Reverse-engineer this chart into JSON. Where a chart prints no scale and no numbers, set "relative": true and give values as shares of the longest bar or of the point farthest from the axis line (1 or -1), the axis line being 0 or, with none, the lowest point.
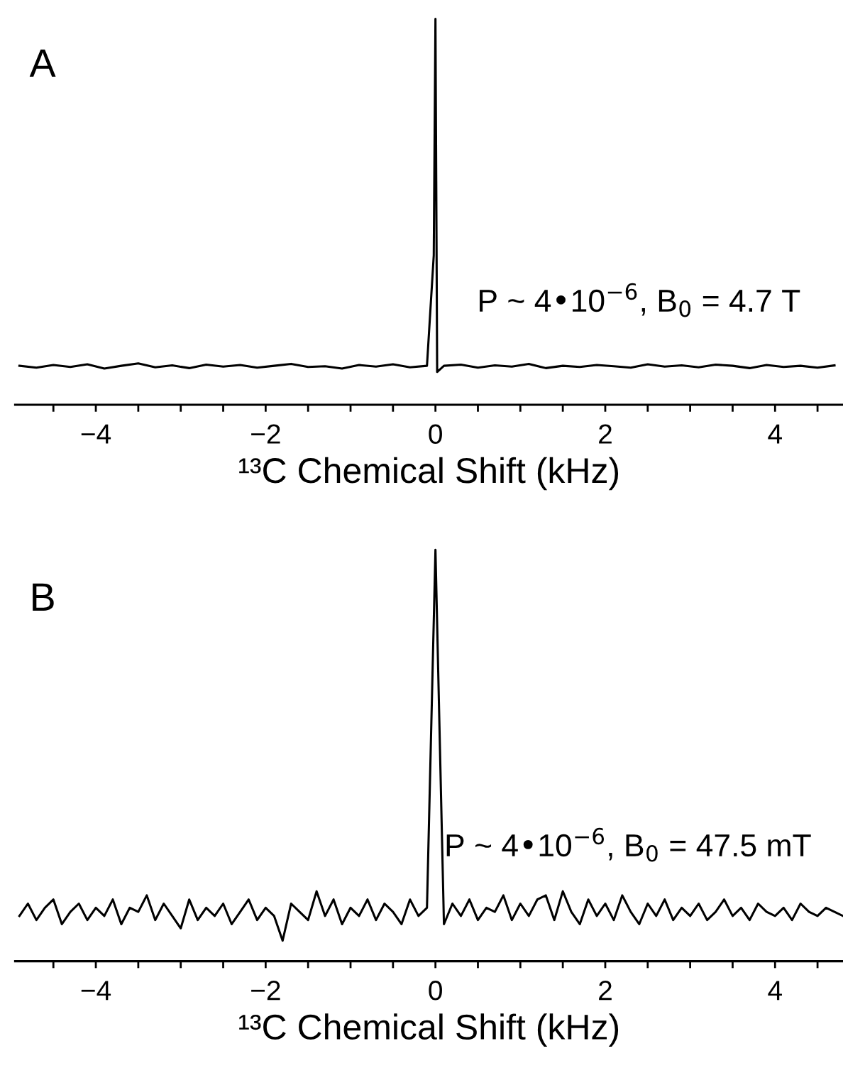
{
  "chart_data": [
    {
      "type": "line",
      "title": "A",
      "xlabel": "¹³C Chemical Shift (kHz)",
      "relative": true,
      "tick_labels": "x",
      "annotations": [
        "P ~ 4•10$^{−6}$, B$_{0}$ = 4.7 T"
      ],
      "xlim": [
        -4.95,
        4.8
      ],
      "xticks": [
        {
          "value": -4.5,
          "label": null
        },
        -4,
        {
          "value": -3.5,
          "label": null
        },
        {
          "value": -3,
          "label": null
        },
        {
          "value": -2.5,
          "label": null
        },
        -2,
        {
          "value": -1.5,
          "label": null
        },
        {
          "value": -1,
          "label": null
        },
        {
          "value": -0.5,
          "label": null
        },
        0,
        {
          "value": 0.5,
          "label": null
        },
        {
          "value": 1,
          "label": null
        },
        {
          "value": 1.5,
          "label": null
        },
        2,
        {
          "value": 2.5,
          "label": null
        },
        {
          "value": 3,
          "label": null
        },
        {
          "value": 3.5,
          "label": null
        },
        4,
        {
          "value": 4.5,
          "label": null
        }
      ],
      "series": [
        {
          "color": "#000000",
          "x": [
            -4.9,
            -4.7,
            -4.5,
            -4.3,
            -4.1,
            -3.9,
            -3.7,
            -3.5,
            -3.3,
            -3.1,
            -2.9,
            -2.7,
            -2.5,
            -2.3,
            -2.1,
            -1.9,
            -1.7,
            -1.5,
            -1.3,
            -1.1,
            -0.9,
            -0.7,
            -0.5,
            -0.3,
            -0.1,
            -0.02,
            0,
            0.02,
            0.1,
            0.3,
            0.5,
            0.7,
            0.9,
            1.1,
            1.3,
            1.5,
            1.7,
            1.9,
            2.1,
            2.3,
            2.5,
            2.7,
            2.9,
            3.1,
            3.3,
            3.5,
            3.7,
            3.9,
            4.1,
            4.3,
            4.5,
            4.7
          ],
          "values": [
            0.101,
            0.096,
            0.103,
            0.098,
            0.105,
            0.094,
            0.101,
            0.107,
            0.097,
            0.102,
            0.095,
            0.104,
            0.099,
            0.103,
            0.096,
            0.101,
            0.106,
            0.098,
            0.1,
            0.094,
            0.103,
            0.099,
            0.105,
            0.097,
            0.101,
            0.387,
            1,
            0.085,
            0.101,
            0.104,
            0.096,
            0.102,
            0.099,
            0.106,
            0.095,
            0.101,
            0.098,
            0.103,
            0.1,
            0.096,
            0.105,
            0.099,
            0.102,
            0.097,
            0.104,
            0.101,
            0.095,
            0.103,
            0.098,
            0.101,
            0.096,
            0.102
          ]
        }
      ]
    },
    {
      "type": "line",
      "title": "B",
      "xlabel": "¹³C Chemical Shift (kHz)",
      "relative": true,
      "tick_labels": "x",
      "annotations": [
        "P ~ 4•10$^{−6}$, B$_{0}$ = 47.5 mT"
      ],
      "xlim": [
        -4.95,
        4.8
      ],
      "xticks": [
        {
          "value": -4.5,
          "label": null
        },
        -4,
        {
          "value": -3.5,
          "label": null
        },
        {
          "value": -3,
          "label": null
        },
        {
          "value": -2.5,
          "label": null
        },
        -2,
        {
          "value": -1.5,
          "label": null
        },
        {
          "value": -1,
          "label": null
        },
        {
          "value": -0.5,
          "label": null
        },
        0,
        {
          "value": 0.5,
          "label": null
        },
        {
          "value": 1,
          "label": null
        },
        {
          "value": 1.5,
          "label": null
        },
        2,
        {
          "value": 2.5,
          "label": null
        },
        {
          "value": 3,
          "label": null
        },
        {
          "value": 3.5,
          "label": null
        },
        4,
        {
          "value": 4.5,
          "label": null
        }
      ],
      "series": [
        {
          "color": "#000000",
          "x": [
            -4.9,
            -4.8,
            -4.7,
            -4.6,
            -4.5,
            -4.4,
            -4.3,
            -4.2,
            -4.1,
            -4.0,
            -3.9,
            -3.8,
            -3.7,
            -3.6,
            -3.5,
            -3.4,
            -3.3,
            -3.2,
            -3.1,
            -3.0,
            -2.9,
            -2.8,
            -2.7,
            -2.6,
            -2.5,
            -2.4,
            -2.3,
            -2.2,
            -2.1,
            -2.0,
            -1.9,
            -1.8,
            -1.7,
            -1.6,
            -1.5,
            -1.4,
            -1.3,
            -1.2,
            -1.1,
            -1.0,
            -0.9,
            -0.8,
            -0.7,
            -0.6,
            -0.5,
            -0.4,
            -0.3,
            -0.2,
            -0.1,
            0,
            0.1,
            0.2,
            0.3,
            0.4,
            0.5,
            0.6,
            0.7,
            0.8,
            0.9,
            1.0,
            1.1,
            1.2,
            1.3,
            1.4,
            1.5,
            1.6,
            1.7,
            1.8,
            1.9,
            2.0,
            2.1,
            2.2,
            2.3,
            2.4,
            2.5,
            2.6,
            2.7,
            2.8,
            2.9,
            3.0,
            3.1,
            3.2,
            3.3,
            3.4,
            3.5,
            3.6,
            3.7,
            3.8,
            3.9,
            4.0,
            4.1,
            4.2,
            4.3,
            4.4,
            4.5,
            4.6,
            4.7,
            4.8
          ],
          "values": [
            0.11,
            0.14,
            0.1,
            0.13,
            0.15,
            0.09,
            0.12,
            0.14,
            0.1,
            0.13,
            0.11,
            0.15,
            0.09,
            0.13,
            0.12,
            0.16,
            0.1,
            0.14,
            0.11,
            0.08,
            0.15,
            0.1,
            0.13,
            0.11,
            0.14,
            0.09,
            0.12,
            0.15,
            0.1,
            0.13,
            0.11,
            0.05,
            0.14,
            0.12,
            0.1,
            0.17,
            0.11,
            0.15,
            0.09,
            0.13,
            0.11,
            0.15,
            0.1,
            0.14,
            0.12,
            0.09,
            0.15,
            0.11,
            0.13,
            1,
            0.09,
            0.14,
            0.11,
            0.15,
            0.1,
            0.13,
            0.12,
            0.16,
            0.1,
            0.14,
            0.11,
            0.15,
            0.16,
            0.1,
            0.17,
            0.12,
            0.09,
            0.15,
            0.11,
            0.14,
            0.1,
            0.16,
            0.12,
            0.09,
            0.14,
            0.11,
            0.15,
            0.1,
            0.13,
            0.11,
            0.14,
            0.1,
            0.12,
            0.15,
            0.11,
            0.13,
            0.1,
            0.14,
            0.12,
            0.11,
            0.13,
            0.1,
            0.14,
            0.12,
            0.11,
            0.13,
            0.12,
            0.11
          ]
        }
      ]
    }
  ]
}
